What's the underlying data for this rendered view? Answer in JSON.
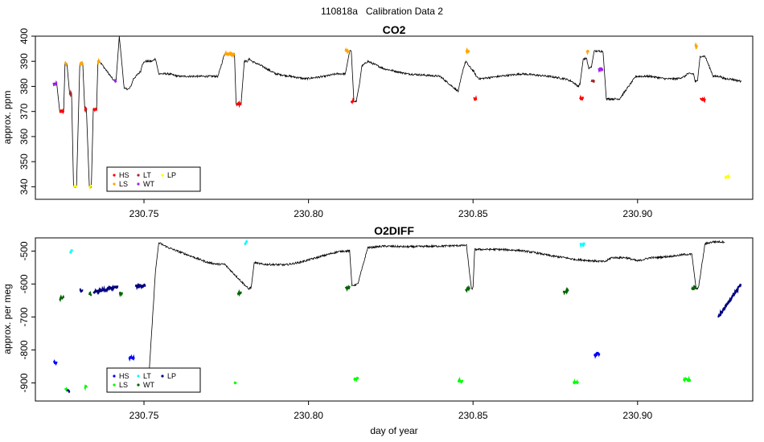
{
  "figure_title": "110818a   Calibration Data 2",
  "chart_data": [
    {
      "type": "line",
      "title": "CO2",
      "xlabel": "",
      "ylabel": "approx. ppm",
      "xlim": [
        230.717,
        230.935
      ],
      "ylim": [
        335,
        400
      ],
      "xticks": [
        230.75,
        230.8,
        230.85,
        230.9
      ],
      "xtick_labels": [
        "230.75",
        "230.80",
        "230.85",
        "230.90"
      ],
      "yticks": [
        340,
        350,
        360,
        370,
        380,
        390,
        400
      ],
      "ytick_labels": [
        "340",
        "350",
        "360",
        "370",
        "380",
        "390",
        "400"
      ],
      "grid": false,
      "legend": {
        "position": "bottom-left",
        "entries": [
          {
            "label": "HS",
            "color": "#ff0000"
          },
          {
            "label": "LS",
            "color": "#ffa500"
          },
          {
            "label": "LT",
            "color": "#a52a2a"
          },
          {
            "label": "WT",
            "color": "#a020f0"
          },
          {
            "label": "LP",
            "color": "#ffff00"
          }
        ]
      },
      "series": [
        {
          "name": "trace",
          "color": "#000000",
          "x": [
            230.7225,
            230.7235,
            230.7244,
            230.7256,
            230.726,
            230.7266,
            230.7274,
            230.728,
            230.7286,
            230.7295,
            230.7305,
            230.7314,
            230.732,
            230.7325,
            230.7334,
            230.734,
            230.7346,
            230.7356,
            230.736,
            230.7365,
            230.741,
            230.7415,
            230.7425,
            230.744,
            230.7455,
            230.746,
            230.7468,
            230.749,
            230.7495,
            230.7505,
            230.752,
            230.7522,
            230.7525,
            230.7535,
            230.7545,
            230.7575,
            230.7605,
            230.7645,
            230.7685,
            230.7725,
            230.7745,
            230.7775,
            230.778,
            230.7795,
            230.7805,
            230.7815,
            230.782,
            230.7828,
            230.786,
            230.79,
            230.7945,
            230.799,
            230.805,
            230.8085,
            230.8112,
            230.8125,
            230.813,
            230.8138,
            230.8145,
            230.8155,
            230.8162,
            230.818,
            230.823,
            230.83,
            230.84,
            230.8455,
            230.847,
            230.8478,
            230.8488,
            230.8502,
            230.851,
            230.852,
            230.858,
            230.865,
            230.873,
            230.878,
            230.88,
            230.882,
            230.8825,
            230.8835,
            230.8845,
            230.8852,
            230.886,
            230.8868,
            230.8882,
            230.8895,
            230.8905,
            230.8945,
            230.8995,
            230.904,
            230.9085,
            230.912,
            230.9145,
            230.915,
            230.916,
            230.917,
            230.9175,
            230.9182,
            230.919,
            230.9205,
            230.923,
            230.925,
            230.9265,
            230.928,
            230.9315
          ],
          "y": [
            381,
            381,
            370,
            370,
            389,
            389,
            377,
            377,
            340,
            340,
            389,
            389,
            371,
            371,
            340,
            340,
            371,
            371,
            390,
            390,
            382,
            382,
            400,
            379,
            379,
            380,
            383,
            386,
            389,
            390,
            390,
            390,
            390,
            391,
            385,
            385,
            384,
            384,
            384,
            384,
            393,
            393,
            373,
            373,
            390,
            390,
            391,
            390,
            388,
            385,
            384,
            383,
            384,
            385,
            385,
            394,
            394,
            374,
            374,
            381,
            388,
            390,
            387,
            385,
            384,
            378,
            387,
            390,
            388,
            386,
            384,
            383,
            384,
            385,
            384,
            383,
            382,
            380,
            381,
            391,
            391,
            387,
            388,
            394,
            394,
            394,
            375,
            375,
            384,
            384,
            383,
            383,
            384,
            385,
            385,
            385,
            382,
            382,
            392,
            392,
            384,
            384,
            383,
            383,
            382
          ]
        }
      ],
      "calibration_segments": [
        {
          "flag": "WT",
          "color": "#a020f0",
          "x": [
            230.7225,
            230.7235
          ],
          "y": [
            381,
            381
          ]
        },
        {
          "flag": "HS",
          "color": "#ff0000",
          "x": [
            230.7244,
            230.7256
          ],
          "y": [
            370,
            370
          ]
        },
        {
          "flag": "LS",
          "color": "#ffa500",
          "x": [
            230.726,
            230.7266
          ],
          "y": [
            389,
            389
          ]
        },
        {
          "flag": "LT",
          "color": "#a52a2a",
          "x": [
            230.7274,
            230.728
          ],
          "y": [
            377,
            377
          ]
        },
        {
          "flag": "LP",
          "color": "#ffff00",
          "x": [
            230.7286,
            230.7295
          ],
          "y": [
            340,
            340
          ]
        },
        {
          "flag": "LS",
          "color": "#ffa500",
          "x": [
            230.7305,
            230.7314
          ],
          "y": [
            389,
            389
          ]
        },
        {
          "flag": "HS",
          "color": "#ff0000",
          "x": [
            230.732,
            230.7325
          ],
          "y": [
            371,
            371
          ]
        },
        {
          "flag": "LP",
          "color": "#ffff00",
          "x": [
            230.7334,
            230.734
          ],
          "y": [
            340,
            340
          ]
        },
        {
          "flag": "HS",
          "color": "#ff0000",
          "x": [
            230.7346,
            230.7356
          ],
          "y": [
            371,
            371
          ]
        },
        {
          "flag": "LS",
          "color": "#ffa500",
          "x": [
            230.736,
            230.7365
          ],
          "y": [
            390,
            390
          ]
        },
        {
          "flag": "WT",
          "color": "#a020f0",
          "x": [
            230.741,
            230.7415
          ],
          "y": [
            382,
            382
          ]
        },
        {
          "flag": "LS",
          "color": "#ffa500",
          "x": [
            230.7745,
            230.7775
          ],
          "y": [
            393,
            393
          ]
        },
        {
          "flag": "HS",
          "color": "#ff0000",
          "x": [
            230.778,
            230.7795
          ],
          "y": [
            373,
            373
          ]
        },
        {
          "flag": "LS",
          "color": "#ffa500",
          "x": [
            230.8112,
            230.8125
          ],
          "y": [
            394,
            394
          ]
        },
        {
          "flag": "HS",
          "color": "#ff0000",
          "x": [
            230.813,
            230.8138
          ],
          "y": [
            374,
            374
          ]
        },
        {
          "flag": "LS",
          "color": "#ffa500",
          "x": [
            230.8478,
            230.8488
          ],
          "y": [
            394,
            394
          ]
        },
        {
          "flag": "HS",
          "color": "#ff0000",
          "x": [
            230.8502,
            230.851
          ],
          "y": [
            375,
            375
          ]
        },
        {
          "flag": "HS",
          "color": "#ff0000",
          "x": [
            230.8825,
            230.8835
          ],
          "y": [
            375,
            375
          ]
        },
        {
          "flag": "LS",
          "color": "#ffa500",
          "x": [
            230.8845,
            230.8852
          ],
          "y": [
            394,
            394
          ]
        },
        {
          "flag": "LT",
          "color": "#a52a2a",
          "x": [
            230.886,
            230.8868
          ],
          "y": [
            382,
            382
          ]
        },
        {
          "flag": "WT",
          "color": "#a020f0",
          "x": [
            230.8882,
            230.8895
          ],
          "y": [
            387,
            387
          ]
        },
        {
          "flag": "LS",
          "color": "#ffa500",
          "x": [
            230.9175,
            230.9182
          ],
          "y": [
            396,
            396
          ]
        },
        {
          "flag": "HS",
          "color": "#ff0000",
          "x": [
            230.919,
            230.9205
          ],
          "y": [
            375,
            375
          ]
        },
        {
          "flag": "LP",
          "color": "#ffff00",
          "x": [
            230.9265,
            230.928
          ],
          "y": [
            344,
            344
          ]
        }
      ]
    },
    {
      "type": "line",
      "title": "O2DIFF",
      "xlabel": "day of year",
      "ylabel": "approx. per meg",
      "xlim": [
        230.717,
        230.935
      ],
      "ylim": [
        -955,
        -460
      ],
      "xticks": [
        230.75,
        230.8,
        230.85,
        230.9
      ],
      "xtick_labels": [
        "230.75",
        "230.80",
        "230.85",
        "230.90"
      ],
      "yticks": [
        -500,
        -600,
        -700,
        -800,
        -900
      ],
      "ytick_labels": [
        "-500",
        "-600",
        "-700",
        "-800",
        "-900"
      ],
      "grid": false,
      "legend": {
        "position": "bottom-left",
        "entries": [
          {
            "label": "HS",
            "color": "#0000ff"
          },
          {
            "label": "LS",
            "color": "#00ff00"
          },
          {
            "label": "LT",
            "color": "#00ffff"
          },
          {
            "label": "WT",
            "color": "#006400"
          },
          {
            "label": "LP",
            "color": "#000080"
          }
        ]
      },
      "series": [
        {
          "name": "trace",
          "color": "#000000",
          "x": [
            230.7515,
            230.7535,
            230.7545,
            230.7575,
            230.7615,
            230.7655,
            230.7695,
            230.7725,
            230.7745,
            230.7818,
            230.7826,
            230.7835,
            230.786,
            230.793,
            230.797,
            230.8025,
            230.806,
            230.8085,
            230.8105,
            230.8125,
            230.8132,
            230.815,
            230.818,
            230.823,
            230.83,
            230.84,
            230.8465,
            230.848,
            230.8495,
            230.85,
            230.8505,
            230.858,
            230.864,
            230.869,
            230.874,
            230.878,
            230.8805,
            230.8895,
            230.8902,
            230.892,
            230.8965,
            230.9,
            230.904,
            230.9055,
            230.911,
            230.9145,
            230.9165,
            230.9178,
            230.9185,
            230.9205,
            230.923,
            230.9265
          ],
          "y": [
            -880,
            -560,
            -475,
            -490,
            -505,
            -520,
            -535,
            -540,
            -540,
            -615,
            -610,
            -535,
            -540,
            -542,
            -535,
            -520,
            -510,
            -503,
            -500,
            -500,
            -605,
            -600,
            -490,
            -485,
            -487,
            -485,
            -483,
            -483,
            -615,
            -612,
            -495,
            -495,
            -498,
            -505,
            -515,
            -520,
            -525,
            -532,
            -532,
            -520,
            -520,
            -530,
            -520,
            -520,
            -515,
            -510,
            -510,
            -615,
            -612,
            -478,
            -472,
            -472
          ]
        }
      ],
      "calibration_segments": [
        {
          "flag": "HS",
          "color": "#0000ff",
          "x": [
            230.7225,
            230.7235
          ],
          "y": [
            -838,
            -838
          ]
        },
        {
          "flag": "WT",
          "color": "#006400",
          "x": [
            230.7244,
            230.7256
          ],
          "y": [
            -644,
            -640
          ]
        },
        {
          "flag": "LS",
          "color": "#00ff00",
          "x": [
            230.726,
            230.7266
          ],
          "y": [
            -920,
            -920
          ]
        },
        {
          "flag": "LP",
          "color": "#000080",
          "x": [
            230.7266,
            230.7274
          ],
          "y": [
            -925,
            -925
          ]
        },
        {
          "flag": "LT",
          "color": "#00ffff",
          "x": [
            230.7274,
            230.7282
          ],
          "y": [
            -505,
            -497
          ]
        },
        {
          "flag": "LP",
          "color": "#000080",
          "x": [
            230.7305,
            230.7315
          ],
          "y": [
            -620,
            -620
          ]
        },
        {
          "flag": "LS",
          "color": "#00ff00",
          "x": [
            230.732,
            230.7326
          ],
          "y": [
            -912,
            -912
          ]
        },
        {
          "flag": "WT",
          "color": "#006400",
          "x": [
            230.7334,
            230.734
          ],
          "y": [
            -630,
            -630
          ]
        },
        {
          "flag": "LP",
          "color": "#000080",
          "x": [
            230.7346,
            230.742
          ],
          "y": [
            -625,
            -608
          ]
        },
        {
          "flag": "WT",
          "color": "#006400",
          "x": [
            230.7425,
            230.7435
          ],
          "y": [
            -628,
            -628
          ]
        },
        {
          "flag": "HS",
          "color": "#0000ff",
          "x": [
            230.7455,
            230.747
          ],
          "y": [
            -825,
            -825
          ]
        },
        {
          "flag": "LP",
          "color": "#000080",
          "x": [
            230.7475,
            230.7505
          ],
          "y": [
            -606,
            -606
          ]
        },
        {
          "flag": "LS",
          "color": "#00ff00",
          "x": [
            230.7775,
            230.778
          ],
          "y": [
            -900,
            -897
          ]
        },
        {
          "flag": "WT",
          "color": "#006400",
          "x": [
            230.7785,
            230.7795
          ],
          "y": [
            -630,
            -625
          ]
        },
        {
          "flag": "LT",
          "color": "#00ffff",
          "x": [
            230.7805,
            230.7815
          ],
          "y": [
            -478,
            -472
          ]
        },
        {
          "flag": "WT",
          "color": "#006400",
          "x": [
            230.8112,
            230.8125
          ],
          "y": [
            -614,
            -610
          ]
        },
        {
          "flag": "LS",
          "color": "#00ff00",
          "x": [
            230.8138,
            230.8152
          ],
          "y": [
            -888,
            -888
          ]
        },
        {
          "flag": "LS",
          "color": "#00ff00",
          "x": [
            230.8455,
            230.8468
          ],
          "y": [
            -895,
            -895
          ]
        },
        {
          "flag": "WT",
          "color": "#006400",
          "x": [
            230.8478,
            230.849
          ],
          "y": [
            -618,
            -613
          ]
        },
        {
          "flag": "WT",
          "color": "#006400",
          "x": [
            230.8775,
            230.879
          ],
          "y": [
            -623,
            -620
          ]
        },
        {
          "flag": "LS",
          "color": "#00ff00",
          "x": [
            230.8805,
            230.882
          ],
          "y": [
            -900,
            -900
          ]
        },
        {
          "flag": "LT",
          "color": "#00ffff",
          "x": [
            230.8825,
            230.884
          ],
          "y": [
            -480,
            -478
          ]
        },
        {
          "flag": "HS",
          "color": "#0000ff",
          "x": [
            230.8868,
            230.8885
          ],
          "y": [
            -815,
            -812
          ]
        },
        {
          "flag": "LS",
          "color": "#00ff00",
          "x": [
            230.914,
            230.916
          ],
          "y": [
            -890,
            -890
          ]
        },
        {
          "flag": "WT",
          "color": "#006400",
          "x": [
            230.9165,
            230.9178
          ],
          "y": [
            -615,
            -612
          ]
        },
        {
          "flag": "LP",
          "color": "#000080",
          "x": [
            230.9245,
            230.9315
          ],
          "y": [
            -700,
            -600
          ]
        }
      ]
    }
  ]
}
